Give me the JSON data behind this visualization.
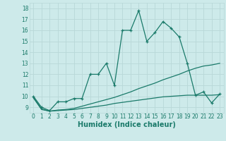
{
  "xlabel": "Humidex (Indice chaleur)",
  "background_color": "#cdeaea",
  "grid_color": "#b8d8d8",
  "line_color": "#1a7a6a",
  "x": [
    0,
    1,
    2,
    3,
    4,
    5,
    6,
    7,
    8,
    9,
    10,
    11,
    12,
    13,
    14,
    15,
    16,
    17,
    18,
    19,
    20,
    21,
    22,
    23
  ],
  "y_main": [
    10.0,
    9.0,
    8.7,
    9.5,
    9.5,
    9.8,
    9.8,
    12.0,
    12.0,
    13.0,
    11.0,
    16.0,
    16.0,
    17.8,
    15.0,
    15.8,
    16.8,
    16.2,
    15.4,
    13.0,
    10.1,
    10.4,
    9.4,
    10.2
  ],
  "y_line2": [
    9.9,
    8.85,
    8.65,
    8.75,
    8.8,
    8.9,
    9.1,
    9.3,
    9.5,
    9.7,
    9.9,
    10.15,
    10.4,
    10.7,
    10.95,
    11.2,
    11.5,
    11.75,
    12.0,
    12.3,
    12.55,
    12.75,
    12.85,
    13.0
  ],
  "y_line3": [
    9.85,
    8.8,
    8.65,
    8.7,
    8.75,
    8.8,
    8.9,
    9.0,
    9.1,
    9.2,
    9.35,
    9.45,
    9.55,
    9.65,
    9.75,
    9.85,
    9.95,
    10.0,
    10.05,
    10.1,
    10.1,
    10.1,
    10.1,
    10.15
  ],
  "ylim": [
    8.5,
    18.5
  ],
  "xlim": [
    -0.5,
    23.5
  ],
  "yticks": [
    9,
    10,
    11,
    12,
    13,
    14,
    15,
    16,
    17,
    18
  ],
  "xticks": [
    0,
    1,
    2,
    3,
    4,
    5,
    6,
    7,
    8,
    9,
    10,
    11,
    12,
    13,
    14,
    15,
    16,
    17,
    18,
    19,
    20,
    21,
    22,
    23
  ],
  "tick_fontsize": 5.5,
  "xlabel_fontsize": 7
}
